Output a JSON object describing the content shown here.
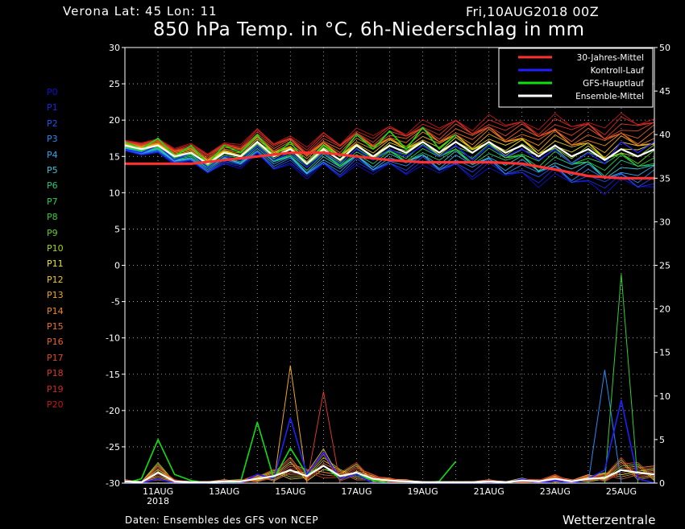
{
  "header": {
    "location": "Verona   Lat: 45 Lon: 11",
    "date": "Fri,10AUG2018 00Z",
    "title": "850 hPa Temp. in °C, 6h-Niederschlag in mm"
  },
  "footer": {
    "credit": "Daten: Ensembles des GFS von NCEP",
    "brand": "Wetterzentrale"
  },
  "members": [
    {
      "label": "P0",
      "color": "#1010d0"
    },
    {
      "label": "P1",
      "color": "#1828e0"
    },
    {
      "label": "P2",
      "color": "#2050f0"
    },
    {
      "label": "P3",
      "color": "#2888f0"
    },
    {
      "label": "P4",
      "color": "#30a8f0"
    },
    {
      "label": "P5",
      "color": "#38c8d8"
    },
    {
      "label": "P6",
      "color": "#20c880"
    },
    {
      "label": "P7",
      "color": "#20d050"
    },
    {
      "label": "P8",
      "color": "#30d030"
    },
    {
      "label": "P9",
      "color": "#60d020"
    },
    {
      "label": "P10",
      "color": "#a0d818"
    },
    {
      "label": "P11",
      "color": "#e8e818"
    },
    {
      "label": "P12",
      "color": "#f0c818"
    },
    {
      "label": "P13",
      "color": "#f0a818"
    },
    {
      "label": "P14",
      "color": "#f08818"
    },
    {
      "label": "P15",
      "color": "#f07020"
    },
    {
      "label": "P16",
      "color": "#e86028"
    },
    {
      "label": "P17",
      "color": "#e04828"
    },
    {
      "label": "P18",
      "color": "#d83828"
    },
    {
      "label": "P19",
      "color": "#d02820"
    },
    {
      "label": "P20",
      "color": "#c01818"
    }
  ],
  "chart_data": {
    "type": "line",
    "xrange": [
      "2018-08-10 00Z",
      "2018-08-26 00Z"
    ],
    "x_tick_labels": [
      "11AUG",
      "13AUG",
      "15AUG",
      "17AUG",
      "19AUG",
      "21AUG",
      "23AUG",
      "25AUG"
    ],
    "x_tick_days": [
      11,
      13,
      15,
      17,
      19,
      21,
      23,
      25
    ],
    "x_year_label": "2018",
    "y_left": {
      "label": "850 hPa Temp. in °C",
      "range": [
        -30,
        30
      ],
      "ticks": [
        30,
        25,
        20,
        15,
        10,
        5,
        0,
        -5,
        -10,
        -15,
        -20,
        -25,
        -30
      ]
    },
    "y_right": {
      "label": "6h-Niederschlag in mm",
      "range": [
        0,
        50
      ],
      "ticks": [
        50,
        45,
        40,
        35,
        30,
        25,
        20,
        15,
        10,
        5,
        0
      ]
    },
    "grid": true,
    "legend_position": "top-right",
    "legend": [
      {
        "label": "30-Jahres-Mittel",
        "color": "#ff3030"
      },
      {
        "label": "Kontroll-Lauf",
        "color": "#2020ff"
      },
      {
        "label": "GFS-Hauptlauf",
        "color": "#10e010"
      },
      {
        "label": "Ensemble-Mittel",
        "color": "#ffffff"
      }
    ],
    "climate_mean_temp": {
      "day": [
        10,
        11,
        12,
        13,
        14,
        15,
        16,
        17,
        18,
        19,
        20,
        21,
        22,
        23,
        24,
        25,
        26
      ],
      "value": [
        14,
        14,
        14,
        14.5,
        15,
        15.5,
        15.5,
        15,
        14.5,
        14.2,
        14.2,
        14.2,
        14,
        13.2,
        12.3,
        12,
        12
      ]
    },
    "ensemble_mean_temp": {
      "day": [
        10,
        10.5,
        11,
        11.5,
        12,
        12.5,
        13,
        13.5,
        14,
        14.5,
        15,
        15.5,
        16,
        16.5,
        17,
        17.5,
        18,
        18.5,
        19,
        19.5,
        20,
        20.5,
        21,
        21.5,
        22,
        22.5,
        23,
        23.5,
        24,
        24.5,
        25,
        25.5,
        26
      ],
      "value": [
        16.5,
        16,
        16.5,
        15,
        15.5,
        14,
        15.5,
        15,
        17,
        15,
        16,
        14,
        16,
        14.5,
        16.5,
        15,
        16.5,
        15.5,
        17,
        15.5,
        17,
        15.5,
        17,
        15.5,
        16.5,
        15,
        16.5,
        15,
        16,
        14.5,
        16,
        15,
        16
      ]
    },
    "gfs_main_temp": {
      "day": [
        10,
        10.5,
        11,
        11.5,
        12,
        12.5,
        13,
        13.5,
        14,
        14.5,
        15,
        15.5,
        16,
        16.5,
        17,
        17.5,
        18,
        18.5,
        19,
        19.5,
        20
      ],
      "value": [
        17,
        16,
        17.5,
        15,
        16.5,
        14,
        16.5,
        15.5,
        18,
        15,
        17,
        14,
        16.5,
        15,
        18,
        16,
        18.5,
        16,
        19,
        16,
        18
      ]
    },
    "control_temp": {
      "day": [
        10,
        10.5,
        11,
        11.5,
        12,
        12.5,
        13,
        13.5,
        14,
        14.5,
        15,
        15.5,
        16,
        16.5,
        17,
        17.5,
        18,
        18.5,
        19,
        19.5,
        20,
        20.5,
        21,
        21.5,
        22,
        22.5,
        23,
        23.5,
        24,
        24.5,
        25,
        25.5,
        26
      ],
      "value": [
        16,
        15.5,
        16.5,
        14.5,
        15.5,
        13.5,
        15,
        14.5,
        16.5,
        14.5,
        15.5,
        13.5,
        15.5,
        14,
        16,
        14.5,
        16,
        15,
        16.5,
        15,
        16.5,
        14.5,
        16.5,
        15,
        16,
        14.5,
        16,
        14,
        15.5,
        14,
        17,
        15.5,
        17
      ]
    },
    "ensemble_mean_precip": {
      "day": [
        10,
        10.5,
        11,
        11.5,
        12,
        12.5,
        13,
        13.5,
        14,
        14.5,
        15,
        15.5,
        16,
        16.5,
        17,
        17.5,
        18,
        18.5,
        19,
        19.5,
        20,
        20.5,
        21,
        21.5,
        22,
        22.5,
        23,
        23.5,
        24,
        24.5,
        25,
        25.5,
        26
      ],
      "value": [
        0.2,
        0.1,
        1.2,
        0.2,
        0.1,
        0.1,
        0.2,
        0.2,
        0.5,
        0.8,
        1.5,
        0.8,
        2.0,
        0.8,
        1.2,
        0.5,
        0.3,
        0.2,
        0.1,
        0.1,
        0.1,
        0.1,
        0.2,
        0.1,
        0.3,
        0.2,
        0.5,
        0.2,
        0.5,
        0.6,
        1.5,
        1.2,
        1.0
      ]
    },
    "control_precip": {
      "day": [
        10,
        10.5,
        11,
        11.5,
        12,
        12.5,
        13,
        13.5,
        14,
        14.5,
        15,
        15.5,
        16,
        16.5,
        17,
        17.5,
        18,
        18.5,
        19,
        19.5,
        20,
        20.5,
        21,
        21.5,
        22,
        22.5,
        23,
        23.5,
        24,
        24.5,
        25,
        25.5,
        26
      ],
      "value": [
        0,
        0,
        0.5,
        0,
        0,
        0,
        0,
        0,
        1.0,
        0.5,
        7.5,
        1.0,
        3.5,
        0.5,
        1.0,
        0,
        0,
        0,
        0,
        0,
        0,
        0,
        0,
        0,
        0.5,
        0,
        0.3,
        0,
        0.5,
        1.5,
        9.5,
        0.5,
        0
      ]
    },
    "gfs_main_precip": {
      "day": [
        10,
        10.5,
        11,
        11.5,
        12,
        12.5,
        13,
        13.5,
        14,
        14.5,
        15,
        15.5,
        16,
        16.5,
        17,
        17.5,
        18,
        18.5,
        19,
        19.5,
        20
      ],
      "value": [
        0,
        0.5,
        5.0,
        1.0,
        0.3,
        0,
        0,
        0.2,
        7.0,
        0.5,
        4.0,
        1.0,
        2.0,
        0.5,
        1.0,
        0.3,
        0,
        0,
        0,
        0.2,
        2.5
      ]
    },
    "member_notes_precip_peaks": [
      {
        "day": 24.5,
        "value": 13.0
      },
      {
        "day": 25.0,
        "value": 24.0
      },
      {
        "day": 15.0,
        "value": 13.5
      },
      {
        "day": 16.0,
        "value": 10.5
      }
    ]
  }
}
